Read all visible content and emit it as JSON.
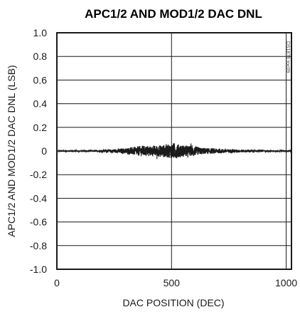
{
  "chart_data": {
    "type": "line",
    "title": "APC1/2 AND MOD1/2 DAC DNL",
    "xlabel": "DAC POSITION (DEC)",
    "ylabel": "APC1/2 AND MOD1/2 DAC DNL (LSB)",
    "xlim": [
      0,
      1023
    ],
    "ylim": [
      -1.0,
      1.0
    ],
    "x_ticks": [
      0,
      500,
      1000
    ],
    "x_tick_labels": [
      "0",
      "500",
      "1000"
    ],
    "y_ticks": [
      1.0,
      0.8,
      0.6,
      0.4,
      0.2,
      0,
      -0.2,
      -0.4,
      -0.6,
      -0.8,
      -1.0
    ],
    "y_tick_labels": [
      "1.0",
      "0.8",
      "0.6",
      "0.4",
      "0.2",
      "0",
      "-0.2",
      "-0.4",
      "-0.6",
      "-0.8",
      "-1.0"
    ],
    "grid": true,
    "note": "DS1876 toc09",
    "series": [
      {
        "color": "#1a1a1a",
        "x": [
          0,
          50,
          100,
          150,
          200,
          250,
          300,
          325,
          350,
          375,
          400,
          425,
          450,
          475,
          500,
          510,
          525,
          550,
          575,
          600,
          625,
          650,
          700,
          750,
          800,
          850,
          900,
          950,
          1000,
          1023
        ],
        "envelope": [
          0.005,
          0.006,
          0.006,
          0.008,
          0.01,
          0.015,
          0.025,
          0.03,
          0.04,
          0.045,
          0.04,
          0.045,
          0.05,
          0.055,
          0.06,
          0.07,
          0.06,
          0.05,
          0.045,
          0.04,
          0.03,
          0.025,
          0.02,
          0.015,
          0.012,
          0.01,
          0.008,
          0.006,
          0.005,
          0.005
        ]
      }
    ]
  }
}
